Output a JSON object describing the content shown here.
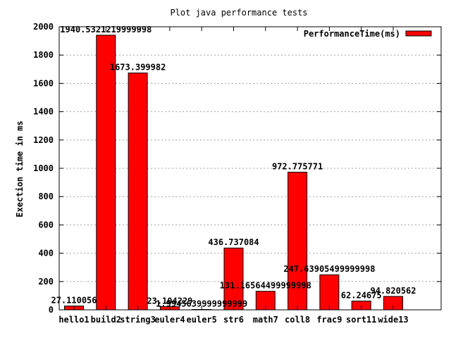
{
  "chart_data": {
    "type": "bar",
    "title": "Plot java performance tests",
    "xlabel": "",
    "ylabel": "Exection time in ms",
    "ylim": [
      0,
      2000
    ],
    "yticks": [
      0,
      200,
      400,
      600,
      800,
      1000,
      1200,
      1400,
      1600,
      1800,
      2000
    ],
    "grid": true,
    "legend_position": "top-right",
    "bar_color": "#ff0000",
    "categories": [
      "hello1",
      "build2",
      "string3",
      "euler4",
      "euler5",
      "str6",
      "math7",
      "coll8",
      "frac9",
      "sort11",
      "wide13"
    ],
    "series": [
      {
        "name": "PerformanceTime(ms)",
        "values": [
          27.110056,
          1940.5321219999998,
          1673.399982,
          23.104229,
          1.994564,
          436.737084,
          131.16564499999998,
          972.775771,
          247.63905499999998,
          62.24675,
          94.820562
        ],
        "labels": [
          "27.110056",
          "1940.5321219999998",
          "1673.399982",
          "23.104229",
          "1.9945639999999999",
          "436.737084",
          "131.16564499999998",
          "972.775771",
          "247.63905499999998",
          "62.24675",
          "94.820562"
        ]
      }
    ]
  }
}
